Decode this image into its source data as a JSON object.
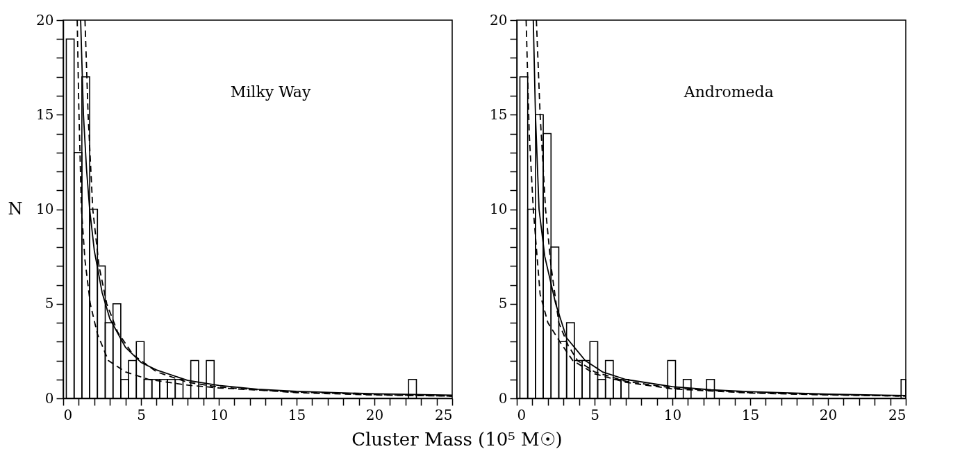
{
  "chart_data": [
    {
      "type": "histogram",
      "ylabel": "N",
      "xlabel": "Cluster Mass (10⁵ M☉)",
      "annotations": [
        "Milky Way"
      ],
      "bins": [
        0.2,
        0.7,
        1.2,
        1.7,
        2.2,
        2.7,
        3.2,
        3.7,
        4.2,
        4.7,
        5.2,
        5.7,
        6.2,
        6.7,
        7.2,
        7.7,
        8.2,
        8.7,
        9.2,
        9.7,
        22.2,
        22.7
      ],
      "values": [
        19,
        13,
        17,
        10,
        7,
        4,
        5,
        1,
        2,
        3,
        1,
        1,
        1,
        1,
        1,
        0,
        2,
        0,
        2,
        0,
        1
      ],
      "color": "#000000",
      "series": [
        {
          "type": "line",
          "line_style": "solid",
          "color": "#000000",
          "x": [
            1.12,
            1.3,
            1.5,
            1.7,
            2,
            2.5,
            3,
            4,
            5,
            6,
            8,
            10,
            12.5,
            15,
            20,
            25
          ],
          "values": [
            20,
            15,
            12.1,
            10,
            7.8,
            5.6,
            4.2,
            2.7,
            1.9,
            1.5,
            0.95,
            0.68,
            0.48,
            0.37,
            0.24,
            0.17
          ]
        },
        {
          "type": "line",
          "line_style": "dashed",
          "color": "#000000",
          "x": [
            1.4,
            1.6,
            1.9,
            2.3,
            2.8,
            3.5,
            4.5,
            6,
            8,
            10,
            15,
            20,
            25
          ],
          "values": [
            20,
            15,
            10,
            7,
            5,
            3.5,
            2.3,
            1.4,
            0.85,
            0.6,
            0.3,
            0.18,
            0.12
          ]
        },
        {
          "type": "line",
          "line_style": "dashed",
          "color": "#000000",
          "x": [
            0.9,
            1.0,
            1.17,
            1.4,
            1.74,
            2.2,
            2.9,
            4,
            5.5,
            8,
            10,
            15,
            20,
            25
          ],
          "values": [
            20,
            15.5,
            10,
            7.3,
            5,
            3.4,
            2,
            1.4,
            1,
            0.7,
            0.55,
            0.33,
            0.2,
            0.12
          ]
        }
      ],
      "xlim": [
        0,
        25
      ],
      "ylim": [
        0,
        20
      ],
      "xticks": [
        0,
        {
          "value": 1,
          "label": null
        },
        {
          "value": 2,
          "label": null
        },
        {
          "value": 3,
          "label": null
        },
        {
          "value": 4,
          "label": null
        },
        5,
        {
          "value": 6,
          "label": null
        },
        {
          "value": 7,
          "label": null
        },
        {
          "value": 8,
          "label": null
        },
        {
          "value": 9,
          "label": null
        },
        10,
        {
          "value": 11,
          "label": null
        },
        {
          "value": 12,
          "label": null
        },
        {
          "value": 13,
          "label": null
        },
        {
          "value": 14,
          "label": null
        },
        15,
        {
          "value": 16,
          "label": null
        },
        {
          "value": 17,
          "label": null
        },
        {
          "value": 18,
          "label": null
        },
        {
          "value": 19,
          "label": null
        },
        20,
        {
          "value": 21,
          "label": null
        },
        {
          "value": 22,
          "label": null
        },
        {
          "value": 23,
          "label": null
        },
        {
          "value": 24,
          "label": null
        },
        25
      ],
      "yticks": [
        0,
        {
          "value": 1,
          "label": null
        },
        {
          "value": 2,
          "label": null
        },
        {
          "value": 3,
          "label": null
        },
        {
          "value": 4,
          "label": null
        },
        5,
        {
          "value": 6,
          "label": null
        },
        {
          "value": 7,
          "label": null
        },
        {
          "value": 8,
          "label": null
        },
        {
          "value": 9,
          "label": null
        },
        10,
        {
          "value": 11,
          "label": null
        },
        {
          "value": 12,
          "label": null
        },
        {
          "value": 13,
          "label": null
        },
        {
          "value": 14,
          "label": null
        },
        15,
        {
          "value": 16,
          "label": null
        },
        {
          "value": 17,
          "label": null
        },
        {
          "value": 18,
          "label": null
        },
        {
          "value": 19,
          "label": null
        },
        20
      ],
      "grid": false
    },
    {
      "type": "histogram",
      "annotations": [
        "Andromeda"
      ],
      "bins": [
        0.2,
        0.7,
        1.2,
        1.7,
        2.2,
        2.7,
        3.2,
        3.7,
        4.2,
        4.7,
        5.2,
        5.7,
        6.2,
        6.7,
        7.2,
        9.7,
        10.2,
        10.7,
        11.2,
        12.2,
        12.7,
        24.7,
        25
      ],
      "values": [
        17,
        10,
        15,
        14,
        8,
        3,
        4,
        2,
        2,
        3,
        1,
        2,
        1,
        1,
        0,
        2,
        0,
        1,
        0,
        1,
        0,
        1
      ],
      "color": "#000000",
      "series": [
        {
          "type": "line",
          "line_style": "solid",
          "color": "#000000",
          "x": [
            1.06,
            1.2,
            1.43,
            1.8,
            2.5,
            3.2,
            4.4,
            5.5,
            7,
            10,
            12.5,
            15,
            20,
            25
          ],
          "values": [
            20,
            15,
            10,
            7.5,
            5,
            3.2,
            2,
            1.4,
            1,
            0.62,
            0.45,
            0.35,
            0.22,
            0.15
          ]
        },
        {
          "type": "line",
          "line_style": "dashed",
          "color": "#000000",
          "x": [
            1.26,
            1.5,
            1.85,
            2.2,
            2.7,
            3.3,
            3.9,
            5,
            7,
            10,
            15,
            20,
            25
          ],
          "values": [
            20,
            15,
            10,
            7,
            4,
            2.8,
            2,
            1.4,
            0.9,
            0.55,
            0.3,
            0.2,
            0.12
          ]
        },
        {
          "type": "line",
          "line_style": "dashed",
          "color": "#000000",
          "x": [
            0.6,
            0.8,
            1.06,
            1.5,
            2,
            2.76,
            3.6,
            5,
            7,
            10,
            15,
            20,
            25
          ],
          "values": [
            20,
            14,
            10,
            5.5,
            4,
            3,
            2,
            1.3,
            0.85,
            0.5,
            0.28,
            0.18,
            0.12
          ]
        }
      ],
      "xlim": [
        0,
        25
      ],
      "ylim": [
        0,
        20
      ],
      "xticks": [
        0,
        {
          "value": 1,
          "label": null
        },
        {
          "value": 2,
          "label": null
        },
        {
          "value": 3,
          "label": null
        },
        {
          "value": 4,
          "label": null
        },
        5,
        {
          "value": 6,
          "label": null
        },
        {
          "value": 7,
          "label": null
        },
        {
          "value": 8,
          "label": null
        },
        {
          "value": 9,
          "label": null
        },
        10,
        {
          "value": 11,
          "label": null
        },
        {
          "value": 12,
          "label": null
        },
        {
          "value": 13,
          "label": null
        },
        {
          "value": 14,
          "label": null
        },
        15,
        {
          "value": 16,
          "label": null
        },
        {
          "value": 17,
          "label": null
        },
        {
          "value": 18,
          "label": null
        },
        {
          "value": 19,
          "label": null
        },
        20,
        {
          "value": 21,
          "label": null
        },
        {
          "value": 22,
          "label": null
        },
        {
          "value": 23,
          "label": null
        },
        {
          "value": 24,
          "label": null
        },
        25
      ],
      "yticks": [
        0,
        {
          "value": 1,
          "label": null
        },
        {
          "value": 2,
          "label": null
        },
        {
          "value": 3,
          "label": null
        },
        {
          "value": 4,
          "label": null
        },
        5,
        {
          "value": 6,
          "label": null
        },
        {
          "value": 7,
          "label": null
        },
        {
          "value": 8,
          "label": null
        },
        {
          "value": 9,
          "label": null
        },
        10,
        {
          "value": 11,
          "label": null
        },
        {
          "value": 12,
          "label": null
        },
        {
          "value": 13,
          "label": null
        },
        {
          "value": 14,
          "label": null
        },
        15,
        {
          "value": 16,
          "label": null
        },
        {
          "value": 17,
          "label": null
        },
        {
          "value": 18,
          "label": null
        },
        {
          "value": 19,
          "label": null
        },
        20
      ],
      "grid": false
    }
  ]
}
